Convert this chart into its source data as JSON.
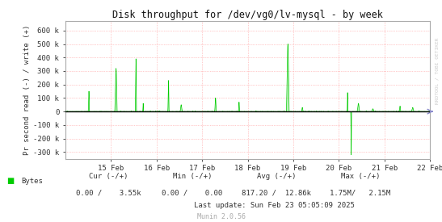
{
  "title": "Disk throughput for /dev/vg0/lv-mysql - by week",
  "ylabel": "Pr second read (-) / write (+)",
  "xlabel_dates": [
    "15 Feb",
    "16 Feb",
    "17 Feb",
    "18 Feb",
    "19 Feb",
    "20 Feb",
    "21 Feb",
    "22 Feb"
  ],
  "bg_color": "#FFFFFF",
  "plot_bg_color": "#FFFFFF",
  "grid_color": "#FF9999",
  "line_color": "#00CC00",
  "zero_line_color": "#000000",
  "border_color": "#AAAAAA",
  "ylim": [
    -350000,
    670000
  ],
  "yticks": [
    -300000,
    -200000,
    -100000,
    0,
    100000,
    200000,
    300000,
    400000,
    500000,
    600000
  ],
  "ytick_labels": [
    "-300 k",
    "-200 k",
    "-100 k",
    "0",
    "100 k",
    "200 k",
    "300 k",
    "400 k",
    "500 k",
    "600 k"
  ],
  "legend_label": "Bytes",
  "legend_color": "#00CC00",
  "footer_cur_header": "Cur (-/+)",
  "footer_cur_val": "0.00 /    3.55k",
  "footer_min_header": "Min (-/+)",
  "footer_min_val": "0.00 /    0.00",
  "footer_avg_header": "Avg (-/+)",
  "footer_avg_val": "817.20 /  12.86k",
  "footer_max_header": "Max (-/+)",
  "footer_max_val": "1.75M/   2.15M",
  "footer_update": "Last update: Sun Feb 23 05:05:09 2025",
  "munin_version": "Munin 2.0.56",
  "watermark": "RRDTOOL / TOBI OETIKER",
  "num_points": 2016,
  "spike_pos_pos": [
    130,
    280,
    390,
    430,
    570,
    640,
    830,
    960,
    1230,
    1310,
    1560,
    1620,
    1700,
    1850,
    1920
  ],
  "spike_h_pos": [
    150000,
    320000,
    390000,
    60000,
    230000,
    50000,
    100000,
    70000,
    500000,
    30000,
    140000,
    60000,
    20000,
    40000,
    30000
  ],
  "spike_pos_neg": [
    1580
  ],
  "spike_h_neg": [
    320000
  ]
}
